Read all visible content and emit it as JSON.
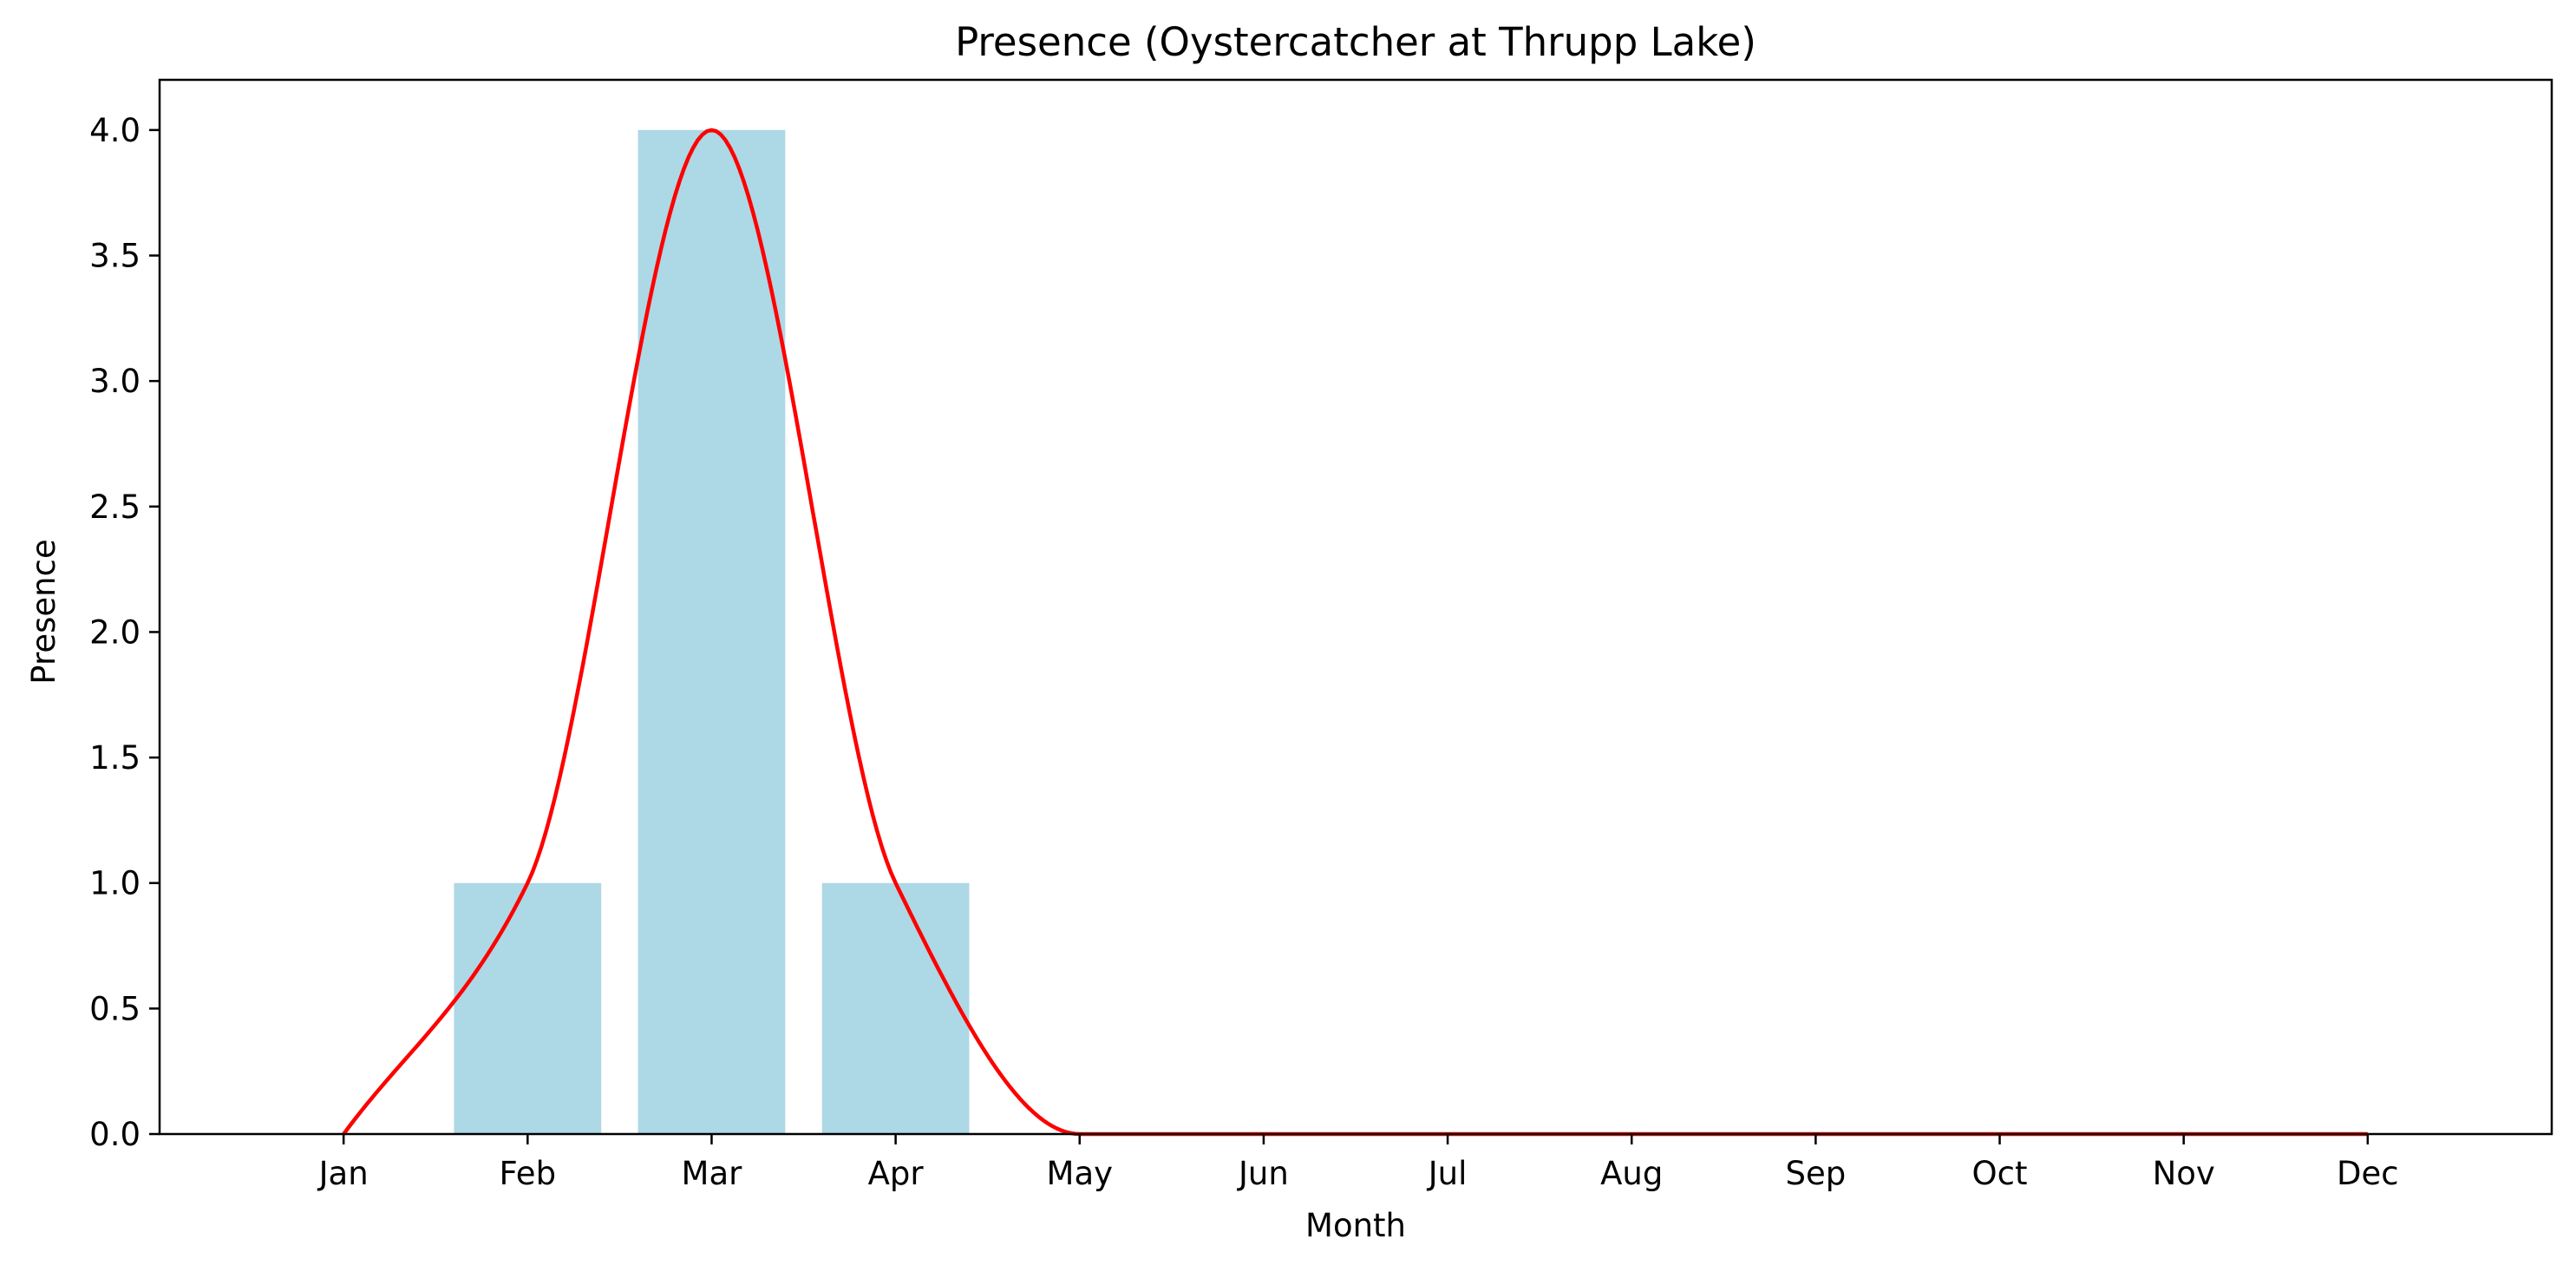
{
  "chart_data": {
    "type": "bar",
    "title": "Presence (Oystercatcher at Thrupp Lake)",
    "xlabel": "Month",
    "ylabel": "Presence",
    "categories": [
      "Jan",
      "Feb",
      "Mar",
      "Apr",
      "May",
      "Jun",
      "Jul",
      "Aug",
      "Sep",
      "Oct",
      "Nov",
      "Dec"
    ],
    "series": [
      {
        "values": [
          0,
          1,
          4,
          1,
          0,
          0,
          0,
          0,
          0,
          0,
          0,
          0
        ]
      }
    ],
    "smoothed_line": {
      "values": [
        0,
        1,
        4,
        1,
        0,
        0,
        0,
        0,
        0,
        0,
        0,
        0
      ]
    },
    "ylim": [
      0,
      4.2
    ],
    "xlim": [
      -1,
      12
    ],
    "yticks": [
      "0.0",
      "0.5",
      "1.0",
      "1.5",
      "2.0",
      "2.5",
      "3.0",
      "3.5",
      "4.0"
    ],
    "grid": false,
    "colors": {
      "bar": "#add8e6",
      "line": "#ff0000",
      "axis": "#000000"
    }
  }
}
